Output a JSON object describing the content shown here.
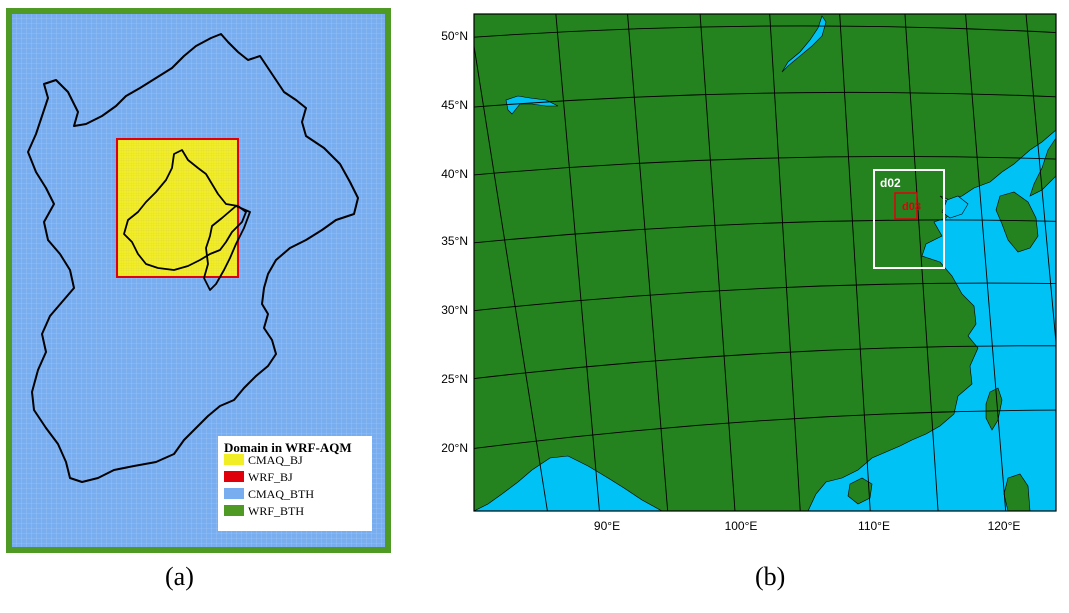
{
  "panel_a": {
    "caption": "(a)",
    "legend": {
      "title": "Domain in WRF-AQM",
      "items": [
        {
          "label": "CMAQ_BJ",
          "color": "#f2ee25"
        },
        {
          "label": "WRF_BJ",
          "color": "#e0000b"
        },
        {
          "label": "CMAQ_BTH",
          "color": "#78aef0"
        },
        {
          "label": "WRF_BTH",
          "color": "#4e9a25"
        }
      ]
    },
    "colors": {
      "frame": "#4e9a25",
      "grid_bg": "#78aef0",
      "inner_fill": "#f2ee25",
      "inner_border": "#e0000b"
    }
  },
  "panel_b": {
    "caption": "(b)",
    "colors": {
      "land": "#24821f",
      "ocean": "#00c2f5",
      "d02_box": "#ffffff",
      "d03_box": "#e0000b"
    },
    "lat_labels": [
      "50°N",
      "45°N",
      "40°N",
      "35°N",
      "30°N",
      "25°N",
      "20°N"
    ],
    "lon_labels": [
      "90°E",
      "100°E",
      "110°E",
      "120°E"
    ],
    "domains": [
      {
        "label": "d02",
        "color": "#ffffff"
      },
      {
        "label": "d03",
        "color": "#e0000b"
      }
    ]
  }
}
